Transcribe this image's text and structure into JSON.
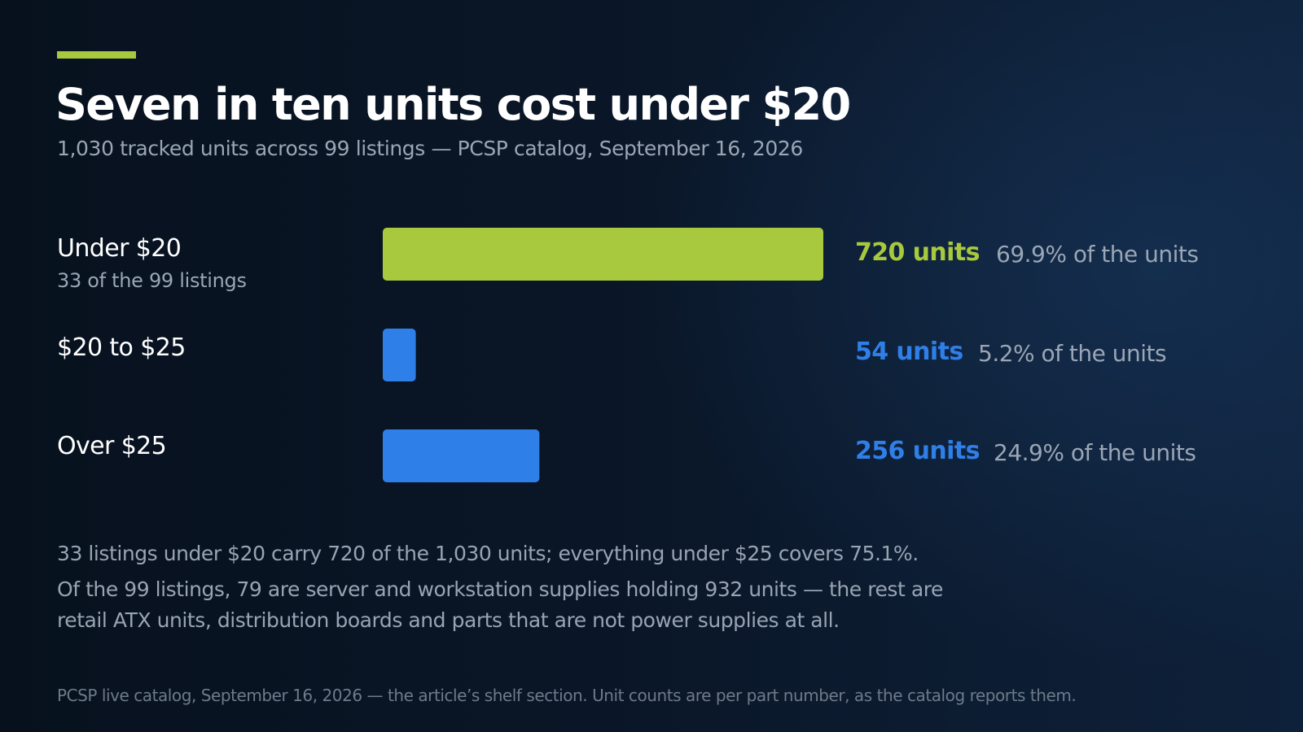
{
  "header": {
    "title": "Seven in ten units cost under $20",
    "subtitle": "1,030 tracked units across 99 listings — PCSP catalog, September 16, 2026"
  },
  "colors": {
    "accent": "#a8c93d",
    "bar_under_20": "#a8c93d",
    "bar_other": "#2f7fe8",
    "muted_text": "#9aa6b5"
  },
  "chart_data": {
    "type": "bar",
    "orientation": "horizontal",
    "title": "Seven in ten units cost under $20",
    "subtitle": "1,030 tracked units across 99 listings — PCSP catalog, September 16, 2026",
    "categories": [
      "Under $20",
      "$20 to $25",
      "Over $25"
    ],
    "category_notes": [
      "33 of the 99 listings",
      "",
      ""
    ],
    "values": [
      720,
      54,
      256
    ],
    "value_labels": [
      "720 units",
      "54 units",
      "256 units"
    ],
    "share_labels": [
      "69.9% of the units",
      "5.2% of the units",
      "24.9% of the units"
    ],
    "bar_colors": [
      "#a8c93d",
      "#2f7fe8",
      "#2f7fe8"
    ],
    "value_colors": [
      "#a8c93d",
      "#2f7fe8",
      "#2f7fe8"
    ],
    "xlim": [
      0,
      720
    ],
    "grid": false,
    "legend": "none",
    "xlabel": "",
    "ylabel": ""
  },
  "notes": {
    "line1": "33 listings under $20 carry 720 of the 1,030 units; everything under $25 covers 75.1%.",
    "line2": "Of the 99 listings, 79 are server and workstation supplies holding 932 units — the rest are",
    "line3": "retail ATX units, distribution boards and parts that are not power supplies at all."
  },
  "source": "PCSP live catalog, September 16, 2026 — the article’s shelf section. Unit counts are per part number, as the catalog reports them."
}
